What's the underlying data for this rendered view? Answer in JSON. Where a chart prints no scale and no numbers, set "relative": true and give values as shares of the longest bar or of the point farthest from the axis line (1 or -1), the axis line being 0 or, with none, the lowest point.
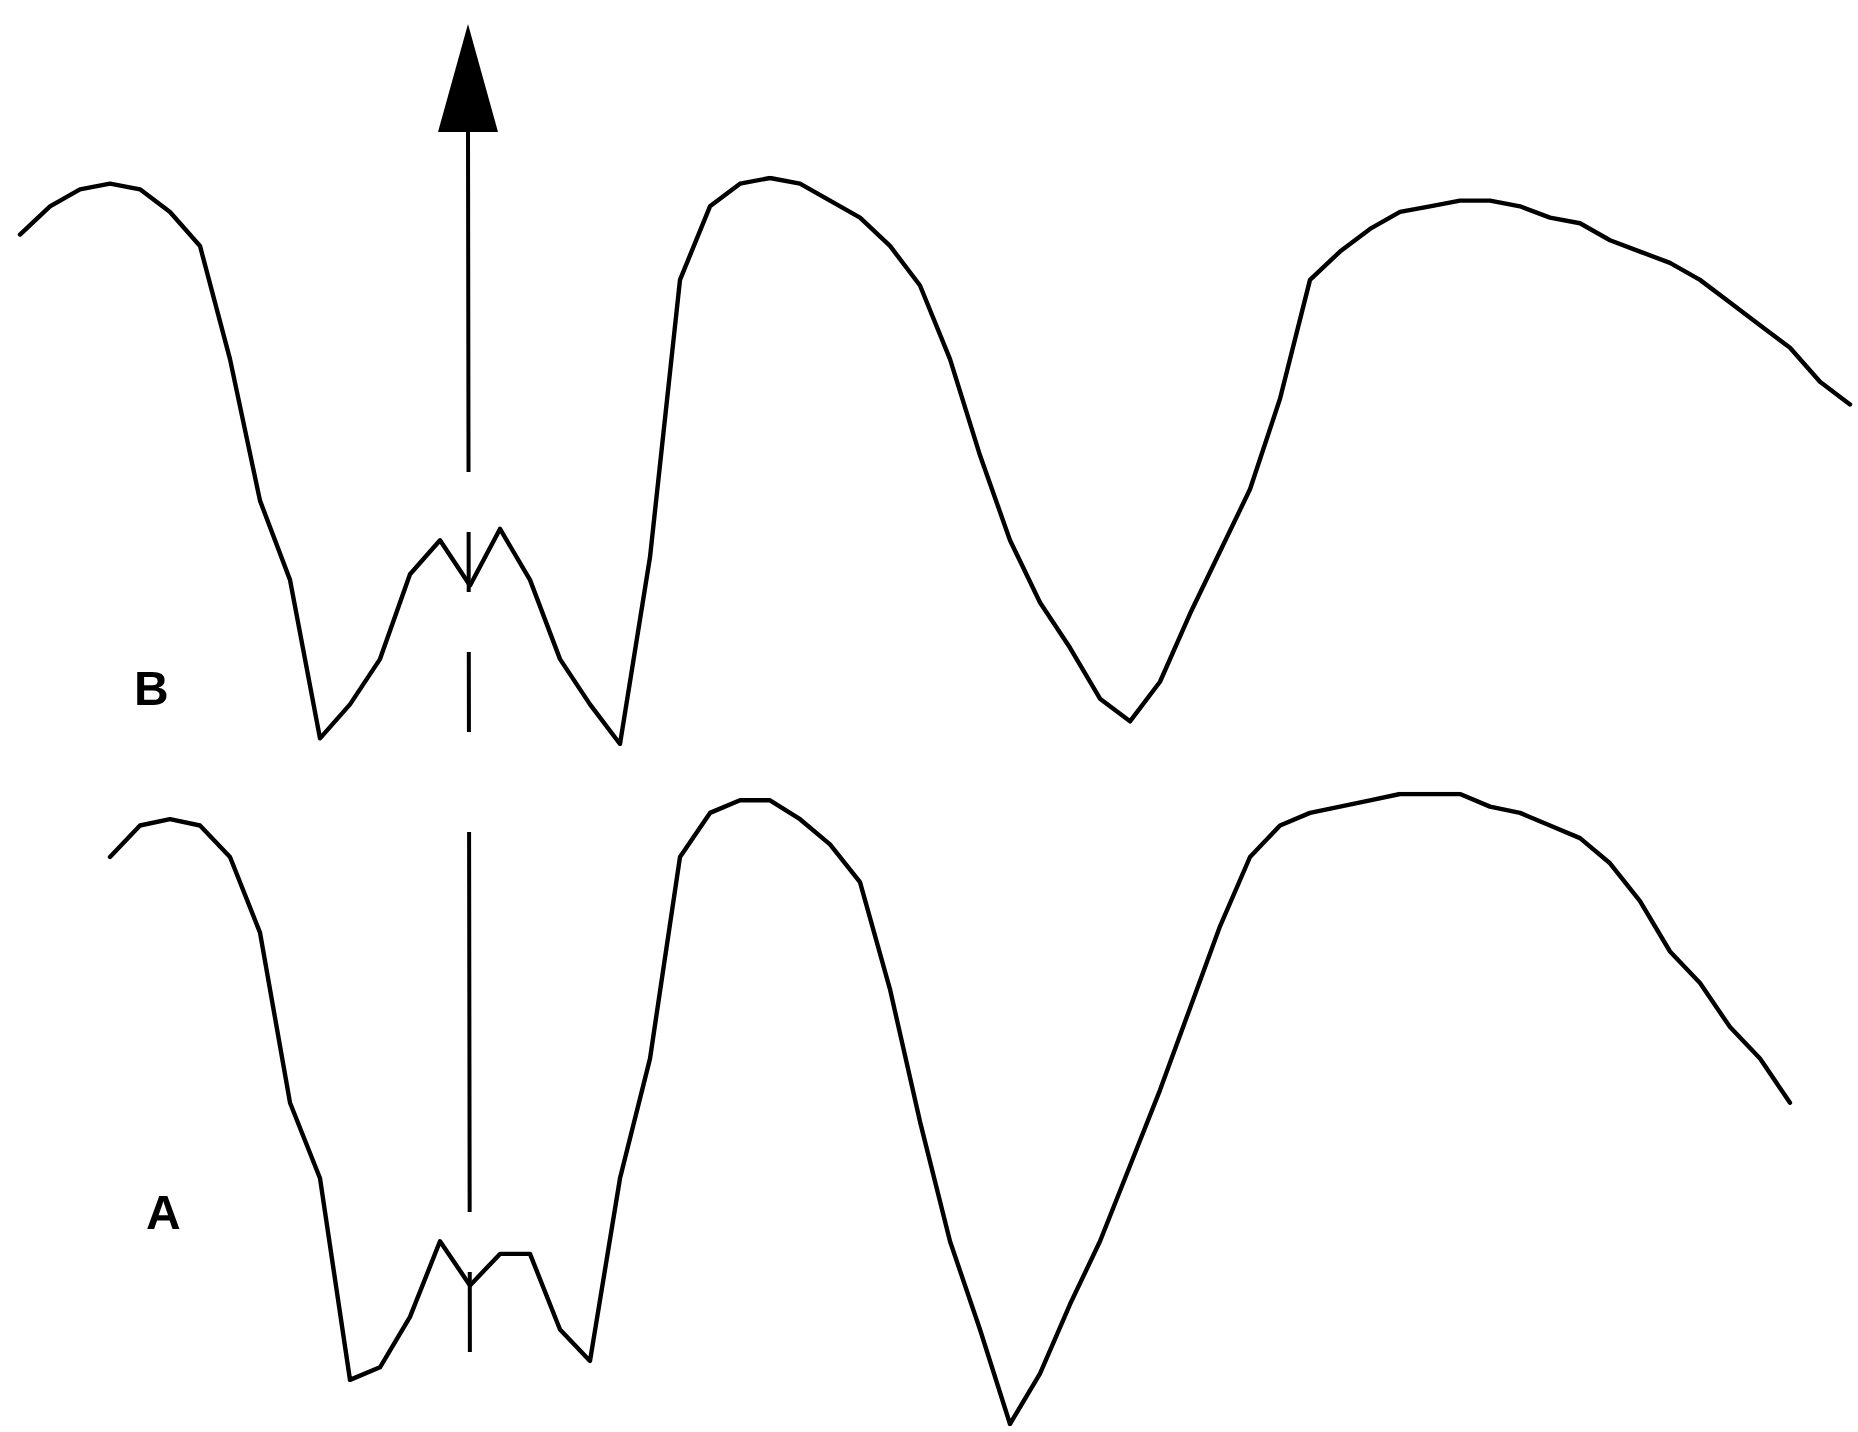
{
  "chart_data": [
    {
      "type": "line",
      "title": "B",
      "relative": true,
      "marker": "none",
      "line_style": "solid",
      "tick_labels": false,
      "categories": [
        null,
        null,
        null,
        null,
        null,
        null,
        null,
        null,
        null,
        null,
        null,
        null,
        null,
        null,
        null,
        null,
        null,
        null,
        null,
        null,
        null,
        null,
        null,
        null,
        null,
        null,
        null,
        null,
        null,
        null,
        null,
        null,
        null,
        null,
        null,
        null,
        null,
        null,
        null,
        null,
        null,
        null,
        null,
        null,
        null,
        null,
        null,
        null,
        null,
        null,
        null,
        null,
        null,
        null,
        null,
        null,
        null,
        null,
        null,
        null,
        null,
        null
      ],
      "series": [
        {
          "color": "#000000",
          "values": [
            0.9,
            0.95,
            0.98,
            0.99,
            0.98,
            0.94,
            0.88,
            0.68,
            0.43,
            0.29,
            0.01,
            0.07,
            0.15,
            0.3,
            0.36,
            0.28,
            0.38,
            0.29,
            0.15,
            0.07,
            0,
            0.33,
            0.82,
            0.95,
            0.99,
            1,
            0.99,
            0.96,
            0.93,
            0.88,
            0.81,
            0.68,
            0.51,
            0.36,
            0.25,
            0.17,
            0.08,
            0.04,
            0.11,
            0.23,
            0.34,
            0.45,
            0.61,
            0.82,
            0.87,
            0.91,
            0.94,
            0.95,
            0.96,
            0.96,
            0.95,
            0.93,
            0.92,
            0.89,
            0.87,
            0.85,
            0.82,
            0.78,
            0.74,
            0.7,
            0.64,
            0.6
          ]
        }
      ]
    },
    {
      "type": "line",
      "title": "A",
      "relative": true,
      "marker": "none",
      "line_style": "solid",
      "tick_labels": false,
      "categories": [
        null,
        null,
        null,
        null,
        null,
        null,
        null,
        null,
        null,
        null,
        null,
        null,
        null,
        null,
        null,
        null,
        null,
        null,
        null,
        null,
        null,
        null,
        null,
        null,
        null,
        null,
        null,
        null,
        null,
        null,
        null,
        null,
        null,
        null,
        null,
        null,
        null,
        null,
        null,
        null,
        null,
        null,
        null,
        null,
        null,
        null,
        null,
        null,
        null,
        null,
        null,
        null,
        null,
        null,
        null,
        null,
        null
      ],
      "series": [
        {
          "color": "#000000",
          "values": [
            0.9,
            0.95,
            0.96,
            0.95,
            0.9,
            0.78,
            0.51,
            0.39,
            0.07,
            0.09,
            0.17,
            0.29,
            0.22,
            0.27,
            0.27,
            0.15,
            0.1,
            0.39,
            0.58,
            0.9,
            0.97,
            0.99,
            0.99,
            0.96,
            0.92,
            0.86,
            0.69,
            0.48,
            0.29,
            0.15,
            0,
            0.08,
            0.19,
            0.29,
            0.41,
            0.53,
            0.66,
            0.79,
            0.9,
            0.95,
            0.97,
            0.98,
            0.99,
            1,
            1,
            1,
            0.98,
            0.97,
            0.95,
            0.93,
            0.89,
            0.83,
            0.75,
            0.7,
            0.63,
            0.58,
            0.51
          ]
        }
      ]
    }
  ]
}
